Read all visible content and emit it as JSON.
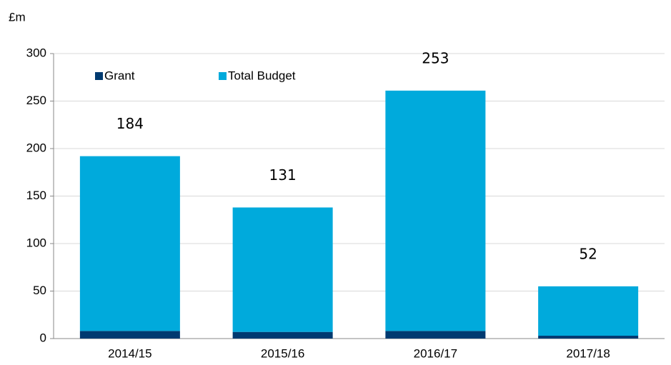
{
  "chart_data": {
    "type": "stacked_bar",
    "y_label": "£m",
    "categories": [
      "2014/15",
      "2015/16",
      "2016/17",
      "2017/18"
    ],
    "series": [
      {
        "name": "Grant",
        "color": "#003a70",
        "values": [
          8,
          7,
          8,
          3
        ]
      },
      {
        "name": "Total Budget",
        "color": "#00aadc",
        "values": [
          184,
          131,
          253,
          52
        ]
      }
    ],
    "ylim": [
      0,
      300
    ],
    "yticks": [
      0,
      50,
      100,
      150,
      200,
      250,
      300
    ],
    "grid": true,
    "legend": "top"
  }
}
